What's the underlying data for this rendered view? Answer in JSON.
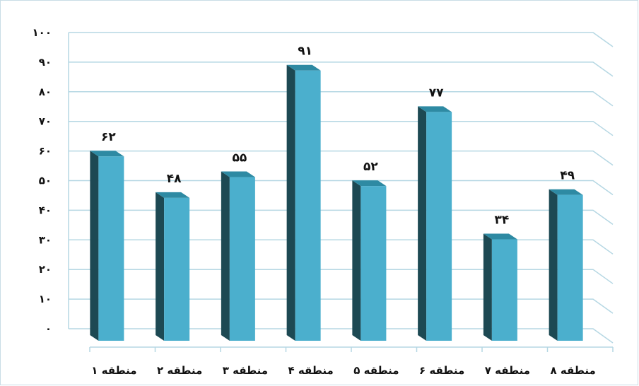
{
  "chart_data": {
    "type": "bar",
    "categories": [
      "منطقه ۱",
      "منطقه ۲",
      "منطقه ۳",
      "منطقه ۴",
      "منطقه ۵",
      "منطقه ۶",
      "منطقه ۷",
      "منطقه ۸"
    ],
    "values": [
      62,
      48,
      55,
      91,
      52,
      77,
      34,
      49
    ],
    "data_labels": [
      "۶۲",
      "۴۸",
      "۵۵",
      "۹۱",
      "۵۲",
      "۷۷",
      "۳۴",
      "۴۹"
    ],
    "ylim": [
      0,
      100
    ],
    "y_ticks": [
      0,
      10,
      20,
      30,
      40,
      50,
      60,
      70,
      80,
      90,
      100
    ],
    "y_tick_labels": [
      "۰",
      "۱۰",
      "۲۰",
      "۳۰",
      "۴۰",
      "۵۰",
      "۶۰",
      "۷۰",
      "۸۰",
      "۹۰",
      "۱۰۰"
    ],
    "title": "",
    "xlabel": "",
    "ylabel": "",
    "grid": true,
    "legend": "none",
    "style": "3d",
    "colors": {
      "bar_front": "#4bafcd",
      "bar_side": "#1d4953",
      "bar_top": "#2e8aa3",
      "grid": "#b5d7e3",
      "text": "#111111"
    }
  }
}
